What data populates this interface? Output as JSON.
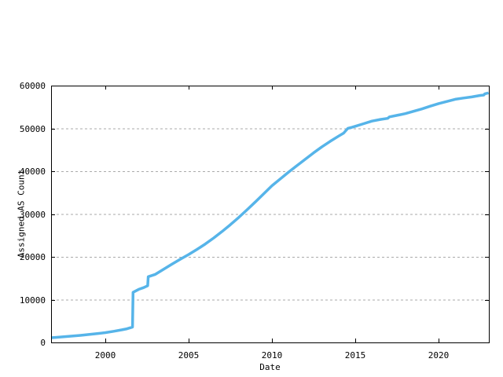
{
  "chart_data": {
    "type": "line",
    "title": "",
    "xlabel": "Date",
    "ylabel": "Assigned AS Count",
    "xlim": [
      1996.74,
      2023.02
    ],
    "ylim": [
      0,
      60000
    ],
    "grid": "horizontal-dashed-on-y-ticks",
    "legend": "none",
    "x_ticks": [
      {
        "value": 2000,
        "label": "2000"
      },
      {
        "value": 2005,
        "label": "2005"
      },
      {
        "value": 2010,
        "label": "2010"
      },
      {
        "value": 2015,
        "label": "2015"
      },
      {
        "value": 2020,
        "label": "2020"
      }
    ],
    "y_ticks": [
      {
        "value": 0,
        "label": "0"
      },
      {
        "value": 10000,
        "label": "10000"
      },
      {
        "value": 20000,
        "label": "20000"
      },
      {
        "value": 30000,
        "label": "30000"
      },
      {
        "value": 40000,
        "label": "40000"
      },
      {
        "value": 50000,
        "label": "50000"
      },
      {
        "value": 60000,
        "label": "60000"
      }
    ],
    "colors": {
      "line": "#56B4E9",
      "grid": "#aaaaaa",
      "border": "#000000",
      "text": "#000000",
      "background": "#ffffff"
    },
    "series": [
      {
        "name": "Assigned AS Count",
        "color": "#56B4E9",
        "points": [
          [
            1996.74,
            1100
          ],
          [
            1997.0,
            1180
          ],
          [
            1997.5,
            1320
          ],
          [
            1998.0,
            1480
          ],
          [
            1998.5,
            1650
          ],
          [
            1999.0,
            1850
          ],
          [
            1999.5,
            2060
          ],
          [
            2000.0,
            2300
          ],
          [
            2000.5,
            2600
          ],
          [
            2001.0,
            2950
          ],
          [
            2001.3,
            3200
          ],
          [
            2001.63,
            3600
          ],
          [
            2001.66,
            11700
          ],
          [
            2002.0,
            12400
          ],
          [
            2002.3,
            12800
          ],
          [
            2002.54,
            13250
          ],
          [
            2002.57,
            15350
          ],
          [
            2003.0,
            15900
          ],
          [
            2003.5,
            17100
          ],
          [
            2004.0,
            18300
          ],
          [
            2004.5,
            19450
          ],
          [
            2005.0,
            20550
          ],
          [
            2005.5,
            21750
          ],
          [
            2006.0,
            23000
          ],
          [
            2006.5,
            24400
          ],
          [
            2007.0,
            25900
          ],
          [
            2007.5,
            27500
          ],
          [
            2008.0,
            29200
          ],
          [
            2008.5,
            31000
          ],
          [
            2009.0,
            32800
          ],
          [
            2009.5,
            34700
          ],
          [
            2010.0,
            36600
          ],
          [
            2010.5,
            38200
          ],
          [
            2011.0,
            39800
          ],
          [
            2011.5,
            41300
          ],
          [
            2012.0,
            42800
          ],
          [
            2012.5,
            44300
          ],
          [
            2013.0,
            45700
          ],
          [
            2013.5,
            47000
          ],
          [
            2014.0,
            48200
          ],
          [
            2014.3,
            48900
          ],
          [
            2014.55,
            50000
          ],
          [
            2014.8,
            50250
          ],
          [
            2015.0,
            50500
          ],
          [
            2015.5,
            51100
          ],
          [
            2016.0,
            51700
          ],
          [
            2016.5,
            52100
          ],
          [
            2016.95,
            52350
          ],
          [
            2017.05,
            52700
          ],
          [
            2017.5,
            53050
          ],
          [
            2018.0,
            53450
          ],
          [
            2018.5,
            54000
          ],
          [
            2019.0,
            54550
          ],
          [
            2019.5,
            55200
          ],
          [
            2020.0,
            55800
          ],
          [
            2020.5,
            56300
          ],
          [
            2021.0,
            56800
          ],
          [
            2021.5,
            57100
          ],
          [
            2022.0,
            57350
          ],
          [
            2022.5,
            57700
          ],
          [
            2022.72,
            57800
          ],
          [
            2022.78,
            58100
          ],
          [
            2023.0,
            58300
          ]
        ]
      }
    ]
  }
}
